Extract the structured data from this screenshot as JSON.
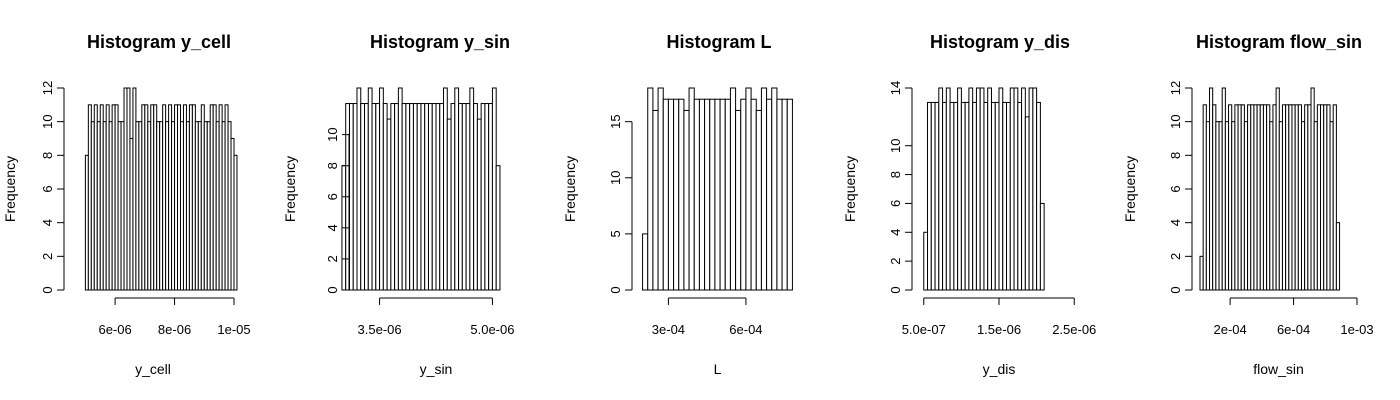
{
  "chart_data": [
    {
      "type": "histogram",
      "title": "Histogram y_cell",
      "xlabel": "y_cell",
      "ylabel": "Frequency",
      "bin_start": 5e-06,
      "bin_width": 1e-07,
      "counts": [
        8,
        11,
        10,
        11,
        10,
        11,
        10,
        11,
        10,
        11,
        11,
        10,
        10,
        12,
        12,
        9,
        12,
        10,
        10,
        11,
        11,
        10,
        11,
        11,
        10,
        10,
        11,
        10,
        11,
        10,
        11,
        11,
        10,
        11,
        10,
        11,
        11,
        10,
        10,
        11,
        10,
        10,
        11,
        11,
        10,
        11,
        10,
        11,
        10,
        9,
        8
      ],
      "xlim": [
        4.55e-06,
        1e-05
      ],
      "ylim": [
        0,
        12
      ],
      "x_ticks": [
        6e-06,
        8e-06,
        1e-05
      ],
      "x_tick_labels": [
        "6e-06",
        "8e-06",
        "1e-05"
      ],
      "y_ticks": [
        0,
        2,
        4,
        6,
        8,
        10,
        12
      ],
      "y_tick_labels": [
        "0",
        "2",
        "4",
        "6",
        "8",
        "10",
        "12"
      ]
    },
    {
      "type": "histogram",
      "title": "Histogram y_sin",
      "xlabel": "y_sin",
      "ylabel": "Frequency",
      "bin_start": 3e-06,
      "bin_width": 5e-08,
      "counts": [
        8,
        12,
        12,
        12,
        13,
        12,
        12,
        13,
        12,
        12,
        13,
        12,
        11,
        12,
        12,
        13,
        12,
        12,
        12,
        12,
        12,
        12,
        12,
        12,
        12,
        12,
        12,
        13,
        11,
        12,
        13,
        12,
        12,
        12,
        13,
        12,
        11,
        12,
        12,
        12,
        13,
        8
      ],
      "xlim": [
        3.2e-06,
        5.3e-06
      ],
      "ylim": [
        0,
        13
      ],
      "x_ticks": [
        3.5e-06,
        5e-06
      ],
      "x_tick_labels": [
        "3.5e-06",
        "5.0e-06"
      ],
      "y_ticks": [
        0,
        2,
        4,
        6,
        8,
        10
      ],
      "y_tick_labels": [
        "0",
        "2",
        "4",
        "6",
        "8",
        "10"
      ]
    },
    {
      "type": "histogram",
      "title": "Histogram L",
      "xlabel": "L",
      "ylabel": "Frequency",
      "bin_start": 0.0002,
      "bin_width": 2e-05,
      "counts": [
        5,
        18,
        16,
        18,
        17,
        17,
        17,
        17,
        16,
        18,
        17,
        17,
        17,
        17,
        17,
        17,
        17,
        18,
        16,
        17,
        18,
        17,
        16,
        18,
        17,
        18,
        17,
        17,
        17
      ],
      "xlim": [
        0.00019,
        0.00079
      ],
      "ylim": [
        0,
        18
      ],
      "x_ticks": [
        0.0003,
        0.0006
      ],
      "x_tick_labels": [
        "3e-04",
        "6e-04"
      ],
      "y_ticks": [
        0,
        5,
        10,
        15
      ],
      "y_tick_labels": [
        "0",
        "5",
        "10",
        "15"
      ]
    },
    {
      "type": "histogram",
      "title": "Histogram y_dis",
      "xlabel": "y_dis",
      "ylabel": "Frequency",
      "bin_start": 5e-07,
      "bin_width": 5e-08,
      "counts": [
        4,
        13,
        13,
        13,
        14,
        13,
        14,
        13,
        13,
        14,
        13,
        13,
        14,
        13,
        14,
        14,
        13,
        14,
        13,
        13,
        14,
        13,
        13,
        14,
        14,
        13,
        14,
        12,
        14,
        14,
        13,
        6
      ],
      "xlim": [
        4.5e-07,
        2.55e-06
      ],
      "ylim": [
        0,
        14
      ],
      "x_ticks": [
        5e-07,
        1.5e-06,
        2.5e-06
      ],
      "x_tick_labels": [
        "5.0e-07",
        "1.5e-06",
        "2.5e-06"
      ],
      "y_ticks": [
        0,
        2,
        4,
        6,
        8,
        10,
        14
      ],
      "y_tick_labels": [
        "0",
        "2",
        "4",
        "6",
        "8",
        "10",
        "14"
      ]
    },
    {
      "type": "histogram",
      "title": "Histogram flow_sin",
      "xlabel": "flow_sin",
      "ylabel": "Frequency",
      "bin_start": 1e-05,
      "bin_width": 2e-05,
      "counts": [
        2,
        11,
        10,
        12,
        11,
        10,
        10,
        12,
        10,
        11,
        10,
        11,
        11,
        11,
        10,
        11,
        11,
        11,
        11,
        11,
        11,
        11,
        10,
        11,
        12,
        10,
        11,
        11,
        11,
        11,
        11,
        11,
        10,
        11,
        11,
        12,
        10,
        11,
        11,
        11,
        11,
        10,
        11,
        4
      ],
      "xlim": [
        1e-05,
        0.001
      ],
      "ylim": [
        0,
        12
      ],
      "x_ticks": [
        0.0002,
        0.0006,
        0.001
      ],
      "x_tick_labels": [
        "2e-04",
        "6e-04",
        "1e-03"
      ],
      "y_ticks": [
        0,
        2,
        4,
        6,
        8,
        10,
        12
      ],
      "y_tick_labels": [
        "0",
        "2",
        "4",
        "6",
        "8",
        "10",
        "12"
      ]
    }
  ]
}
